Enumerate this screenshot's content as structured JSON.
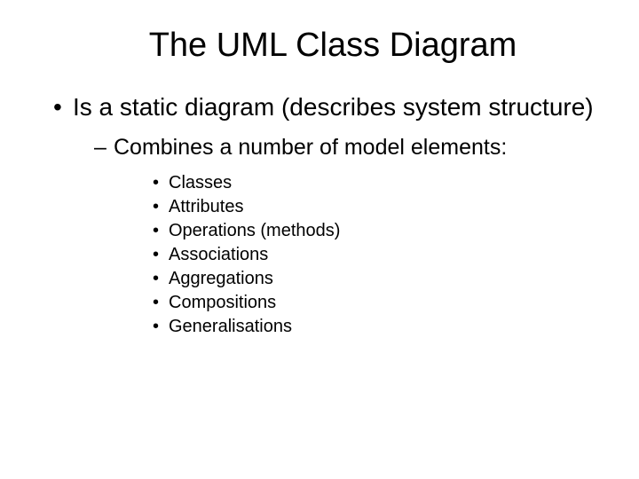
{
  "slide": {
    "title": "The UML Class Diagram",
    "background_color": "#ffffff",
    "text_color": "#000000",
    "title_fontsize": 38,
    "body_fontsize": 28,
    "sub_fontsize": 25,
    "subsub_fontsize": 20,
    "level1": {
      "text": "Is a static diagram (describes system structure)"
    },
    "level2": {
      "text": "Combines a number of model elements:"
    },
    "level3": {
      "items": [
        "Classes",
        "Attributes",
        "Operations (methods)",
        "Associations",
        "Aggregations",
        "Compositions",
        "Generalisations"
      ]
    }
  }
}
